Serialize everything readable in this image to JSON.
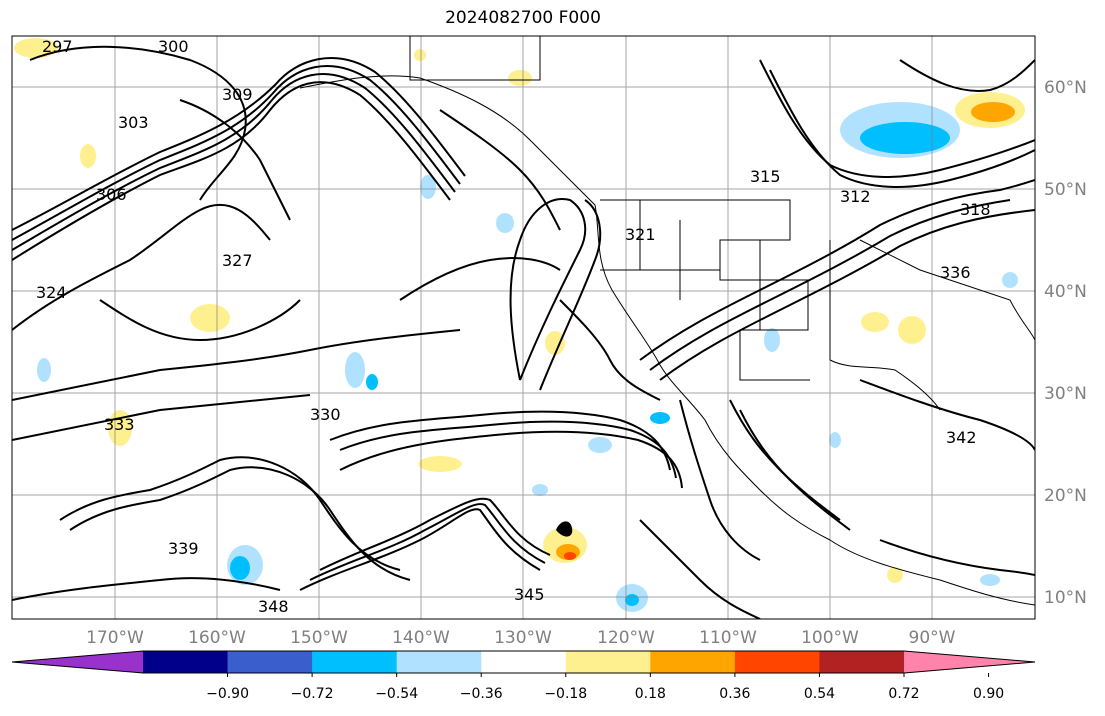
{
  "title": "2024082700 F000",
  "map": {
    "lat_labels": [
      "60°N",
      "50°N",
      "40°N",
      "30°N",
      "20°N",
      "10°N"
    ],
    "lon_labels": [
      "170°W",
      "160°W",
      "150°W",
      "140°W",
      "130°W",
      "120°W",
      "110°W",
      "100°W",
      "90°W"
    ],
    "contour_labels": [
      "297",
      "300",
      "303",
      "306",
      "309",
      "312",
      "315",
      "318",
      "321",
      "324",
      "327",
      "330",
      "333",
      "336",
      "339",
      "342",
      "345",
      "348"
    ],
    "colors": {
      "contour": "#000000",
      "grid": "#808080",
      "coast": "#000000"
    }
  },
  "colorbar": {
    "ticks": [
      "−0.90",
      "−0.72",
      "−0.54",
      "−0.36",
      "−0.18",
      "0.18",
      "0.36",
      "0.54",
      "0.72",
      "0.90"
    ],
    "bins": [
      {
        "color": "#9932cc"
      },
      {
        "color": "#00008b"
      },
      {
        "color": "#3a5fcd"
      },
      {
        "color": "#00bfff"
      },
      {
        "color": "#b0e2ff"
      },
      {
        "color": "#ffffff"
      },
      {
        "color": "#fff08f"
      },
      {
        "color": "#ffa500"
      },
      {
        "color": "#ff4500"
      },
      {
        "color": "#b22222"
      },
      {
        "color": "#ff83aa"
      }
    ]
  }
}
